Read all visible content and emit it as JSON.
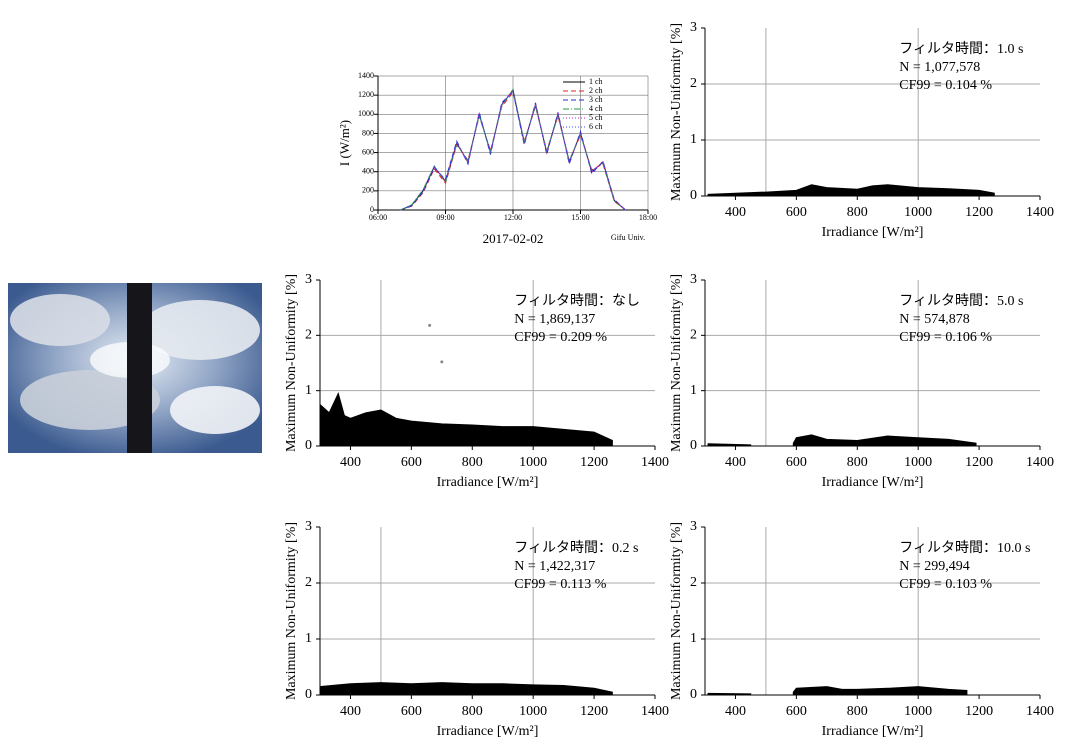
{
  "chart_data": [
    {
      "type": "line",
      "x_label": "2017-02-02",
      "y_label": "I (W/m²)",
      "annotation": "Gifu Univ.",
      "x": [
        7,
        7.5,
        8,
        8.5,
        9,
        9.5,
        10,
        10.5,
        11,
        11.5,
        12,
        12.5,
        13,
        13.5,
        14,
        14.5,
        15,
        15.5,
        16,
        16.5,
        17
      ],
      "xlim": [
        6,
        18
      ],
      "xticks": [
        {
          "value": 6,
          "label": "06:00"
        },
        {
          "value": 9,
          "label": "09:00"
        },
        {
          "value": 12,
          "label": "12:00"
        },
        {
          "value": 15,
          "label": "15:00"
        },
        {
          "value": 18,
          "label": "18:00"
        }
      ],
      "ylim": [
        0,
        1400
      ],
      "yticks": [
        0,
        200,
        400,
        600,
        800,
        1000,
        1200,
        1400
      ],
      "grid": true,
      "series": [
        {
          "name": "1 ch",
          "color": "#000000",
          "dash": "solid",
          "values": [
            0,
            50,
            200,
            450,
            300,
            700,
            500,
            1000,
            600,
            1100,
            1250,
            700,
            1100,
            600,
            1000,
            500,
            800,
            400,
            500,
            100,
            0
          ]
        },
        {
          "name": "2 ch",
          "color": "#e02020",
          "dash": "dashed",
          "values": [
            0,
            40,
            180,
            430,
            280,
            680,
            520,
            980,
            620,
            1080,
            1230,
            720,
            1080,
            620,
            980,
            520,
            780,
            420,
            480,
            90,
            0
          ]
        },
        {
          "name": "3 ch",
          "color": "#2030d0",
          "dash": "dashed",
          "values": [
            0,
            45,
            190,
            440,
            320,
            720,
            480,
            1020,
            580,
            1120,
            1240,
            680,
            1120,
            580,
            1020,
            480,
            820,
            380,
            510,
            110,
            0
          ]
        },
        {
          "name": "4 ch",
          "color": "#20a040",
          "dash": "dashdot",
          "values": [
            0,
            55,
            210,
            460,
            290,
            690,
            510,
            990,
            610,
            1090,
            1260,
            710,
            1090,
            610,
            990,
            510,
            790,
            410,
            490,
            95,
            0
          ]
        },
        {
          "name": "5 ch",
          "color": "#d020d0",
          "dash": "dotted",
          "values": [
            0,
            50,
            195,
            445,
            310,
            705,
            495,
            1005,
            595,
            1105,
            1245,
            695,
            1105,
            595,
            1005,
            495,
            805,
            395,
            505,
            105,
            0
          ]
        },
        {
          "name": "6 ch",
          "color": "#3050ff",
          "dash": "dotted",
          "values": [
            0,
            48,
            205,
            455,
            305,
            695,
            505,
            995,
            605,
            1095,
            1255,
            705,
            1095,
            605,
            995,
            505,
            795,
            405,
            495,
            100,
            0
          ]
        }
      ]
    },
    {
      "type": "area",
      "x_label": "Irradiance [W/m²]",
      "y_label": "Maximum Non-Uniformity [%]",
      "notes": [
        "フィルタ時間：なし",
        "N = 1,869,137",
        "CF99 = 0.209 %"
      ],
      "xlim": [
        300,
        1400
      ],
      "xticks": [
        400,
        600,
        800,
        1000,
        1200,
        1400
      ],
      "ylim": [
        0,
        3
      ],
      "yticks": [
        0,
        1,
        2,
        3
      ],
      "xgrid": [
        500,
        1000
      ],
      "ygrid": [
        1,
        2
      ],
      "series": [
        {
          "style": "area",
          "color": "#000000",
          "x": [
            300,
            330,
            360,
            380,
            400,
            450,
            500,
            550,
            600,
            700,
            800,
            900,
            1000,
            1100,
            1200,
            1260
          ],
          "values": [
            0.75,
            0.6,
            0.95,
            0.55,
            0.5,
            0.6,
            0.65,
            0.5,
            0.45,
            0.4,
            0.38,
            0.35,
            0.35,
            0.3,
            0.25,
            0.1
          ]
        },
        {
          "style": "points",
          "color": "#888888",
          "x": [
            660,
            700
          ],
          "values": [
            2.18,
            1.52
          ]
        }
      ]
    },
    {
      "type": "area",
      "x_label": "Irradiance [W/m²]",
      "y_label": "Maximum Non-Uniformity [%]",
      "notes": [
        "フィルタ時間：0.2 s",
        "N = 1,422,317",
        "CF99 = 0.113 %"
      ],
      "xlim": [
        300,
        1400
      ],
      "xticks": [
        400,
        600,
        800,
        1000,
        1200,
        1400
      ],
      "ylim": [
        0,
        3
      ],
      "yticks": [
        0,
        1,
        2,
        3
      ],
      "xgrid": [
        500,
        1000
      ],
      "ygrid": [
        1,
        2
      ],
      "series": [
        {
          "style": "area",
          "color": "#000000",
          "x": [
            300,
            400,
            500,
            600,
            700,
            800,
            900,
            1000,
            1100,
            1200,
            1260
          ],
          "values": [
            0.15,
            0.2,
            0.22,
            0.2,
            0.22,
            0.2,
            0.2,
            0.18,
            0.17,
            0.12,
            0.05
          ]
        }
      ]
    },
    {
      "type": "area",
      "x_label": "Irradiance [W/m²]",
      "y_label": "Maximum Non-Uniformity [%]",
      "notes": [
        "フィルタ時間：1.0 s",
        "N = 1,077,578",
        "CF99 = 0.104 %"
      ],
      "xlim": [
        300,
        1400
      ],
      "xticks": [
        400,
        600,
        800,
        1000,
        1200,
        1400
      ],
      "ylim": [
        0,
        3
      ],
      "yticks": [
        0,
        1,
        2,
        3
      ],
      "xgrid": [
        500,
        1000
      ],
      "ygrid": [
        1,
        2
      ],
      "series": [
        {
          "style": "area",
          "color": "#000000",
          "x": [
            310,
            400,
            500,
            600,
            650,
            700,
            800,
            850,
            900,
            1000,
            1100,
            1200,
            1250
          ],
          "values": [
            0.03,
            0.05,
            0.07,
            0.1,
            0.2,
            0.15,
            0.12,
            0.18,
            0.2,
            0.15,
            0.13,
            0.1,
            0.05
          ]
        }
      ]
    },
    {
      "type": "area",
      "x_label": "Irradiance [W/m²]",
      "y_label": "Maximum Non-Uniformity [%]",
      "notes": [
        "フィルタ時間：5.0 s",
        "N =     574,878",
        "CF99 = 0.106 %"
      ],
      "xlim": [
        300,
        1400
      ],
      "xticks": [
        400,
        600,
        800,
        1000,
        1200,
        1400
      ],
      "ylim": [
        0,
        3
      ],
      "yticks": [
        0,
        1,
        2,
        3
      ],
      "xgrid": [
        500,
        1000
      ],
      "ygrid": [
        1,
        2
      ],
      "series": [
        {
          "style": "area",
          "color": "#000000",
          "x": [
            310,
            450,
            520,
            590,
            600,
            650,
            700,
            800,
            900,
            1000,
            1100,
            1190
          ],
          "values": [
            0.04,
            0.02,
            null,
            0.05,
            0.15,
            0.2,
            0.12,
            0.1,
            0.18,
            0.15,
            0.12,
            0.05
          ]
        }
      ]
    },
    {
      "type": "area",
      "x_label": "Irradiance [W/m²]",
      "y_label": "Maximum Non-Uniformity [%]",
      "notes": [
        "フィルタ時間：10.0 s",
        "N =     299,494",
        "CF99 = 0.103 %"
      ],
      "xlim": [
        300,
        1400
      ],
      "xticks": [
        400,
        600,
        800,
        1000,
        1200,
        1400
      ],
      "ylim": [
        0,
        3
      ],
      "yticks": [
        0,
        1,
        2,
        3
      ],
      "xgrid": [
        500,
        1000
      ],
      "ygrid": [
        1,
        2
      ],
      "series": [
        {
          "style": "area",
          "color": "#000000",
          "x": [
            310,
            450,
            520,
            590,
            600,
            700,
            750,
            800,
            900,
            1000,
            1100,
            1160
          ],
          "values": [
            0.03,
            0.02,
            null,
            0.05,
            0.12,
            0.15,
            0.1,
            0.1,
            0.12,
            0.15,
            0.1,
            0.08
          ]
        }
      ]
    }
  ]
}
